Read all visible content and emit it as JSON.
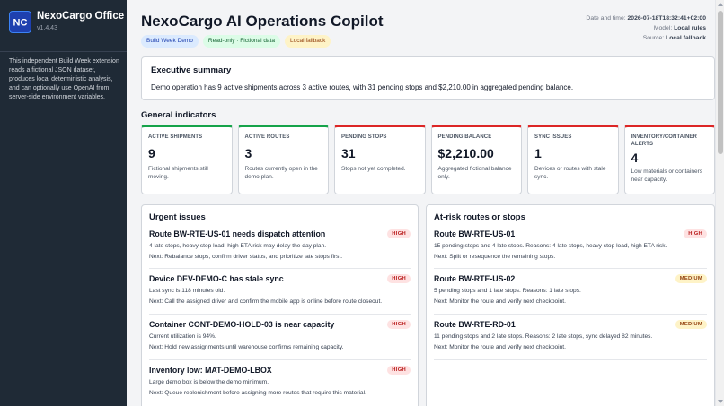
{
  "sidebar": {
    "app_name": "NexoCargo Office",
    "version": "v1.4.43",
    "logo_text": "NC",
    "description": "This independent Build Week extension reads a fictional JSON dataset, produces local deterministic analysis, and can optionally use OpenAI from server-side environment variables."
  },
  "header": {
    "title": "NexoCargo AI Operations Copilot",
    "badges": [
      "Build Week Demo",
      "Read-only · Fictional data",
      "Local fallback"
    ],
    "meta": {
      "datetime_label": "Date and time:",
      "datetime_value": "2026-07-18T18:32:41+02:00",
      "model_label": "Model:",
      "model_value": "Local rules",
      "source_label": "Source:",
      "source_value": "Local fallback"
    }
  },
  "summary": {
    "title": "Executive summary",
    "text": "Demo operation has 9 active shipments across 3 active routes, with 31 pending stops and $2,210.00 in aggregated pending balance."
  },
  "indicators": {
    "title": "General indicators",
    "items": [
      {
        "label": "Active shipments",
        "value": "9",
        "note": "Fictional shipments still moving.",
        "accent": "#16a34a"
      },
      {
        "label": "Active routes",
        "value": "3",
        "note": "Routes currently open in the demo plan.",
        "accent": "#16a34a"
      },
      {
        "label": "Pending stops",
        "value": "31",
        "note": "Stops not yet completed.",
        "accent": "#dc2626"
      },
      {
        "label": "Pending balance",
        "value": "$2,210.00",
        "note": "Aggregated fictional balance only.",
        "accent": "#dc2626"
      },
      {
        "label": "Sync issues",
        "value": "1",
        "note": "Devices or routes with stale sync.",
        "accent": "#dc2626"
      },
      {
        "label": "Inventory/container alerts",
        "value": "4",
        "note": "Low materials or containers near capacity.",
        "accent": "#dc2626"
      }
    ]
  },
  "urgent": {
    "title": "Urgent issues",
    "items": [
      {
        "title": "Route BW-RTE-US-01 needs dispatch attention",
        "severity": "HIGH",
        "detail": "4 late stops, heavy stop load, high ETA risk may delay the day plan.",
        "next": "Next: Rebalance stops, confirm driver status, and prioritize late stops first."
      },
      {
        "title": "Device DEV-DEMO-C has stale sync",
        "severity": "HIGH",
        "detail": "Last sync is 118 minutes old.",
        "next": "Next: Call the assigned driver and confirm the mobile app is online before route closeout."
      },
      {
        "title": "Container CONT-DEMO-HOLD-03 is near capacity",
        "severity": "HIGH",
        "detail": "Current utilization is 94%.",
        "next": "Next: Hold new assignments until warehouse confirms remaining capacity."
      },
      {
        "title": "Inventory low: MAT-DEMO-LBOX",
        "severity": "HIGH",
        "detail": "Large demo box is below the demo minimum.",
        "next": "Next: Queue replenishment before assigning more routes that require this material."
      }
    ]
  },
  "at_risk": {
    "title": "At-risk routes or stops",
    "items": [
      {
        "title": "Route BW-RTE-US-01",
        "severity": "HIGH",
        "detail": "15 pending stops and 4 late stops. Reasons: 4 late stops, heavy stop load, high ETA risk.",
        "next": "Next: Split or resequence the remaining stops."
      },
      {
        "title": "Route BW-RTE-US-02",
        "severity": "MEDIUM",
        "detail": "5 pending stops and 1 late stops. Reasons: 1 late stops.",
        "next": "Next: Monitor the route and verify next checkpoint."
      },
      {
        "title": "Route BW-RTE-RD-01",
        "severity": "MEDIUM",
        "detail": "11 pending stops and 2 late stops. Reasons: 2 late stops, sync delayed 82 minutes.",
        "next": "Next: Monitor the route and verify next checkpoint."
      }
    ]
  }
}
